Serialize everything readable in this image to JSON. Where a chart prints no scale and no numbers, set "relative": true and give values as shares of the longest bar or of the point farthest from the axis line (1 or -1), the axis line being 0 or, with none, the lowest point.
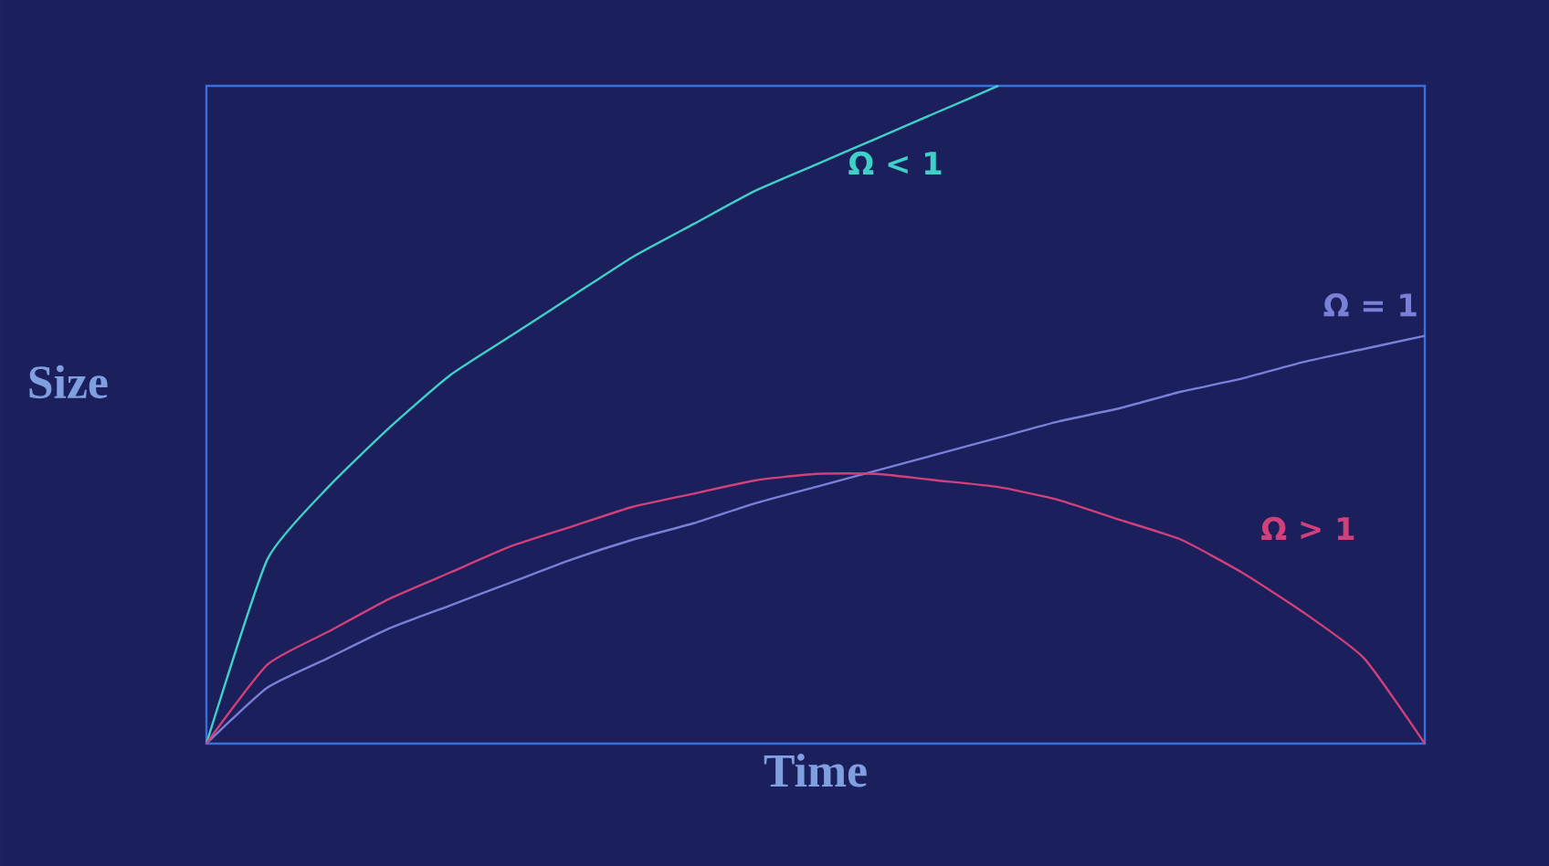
{
  "chart_data": {
    "type": "line",
    "relative": true,
    "xlabel": "Time",
    "ylabel": "Size",
    "categories": [
      null,
      null,
      null,
      null,
      null,
      null,
      null,
      null,
      null,
      null,
      null,
      null,
      null,
      null,
      null,
      null,
      null,
      null,
      null,
      null,
      null
    ],
    "series": [
      {
        "name": "Ω < 1",
        "color": "#3fd0c8",
        "values": [
          0,
          0.28,
          0.39,
          0.48,
          0.56,
          0.62,
          0.68,
          0.74,
          0.79,
          0.84,
          0.88,
          0.92,
          0.96,
          1.0,
          null,
          null,
          null,
          null,
          null,
          null,
          null
        ]
      },
      {
        "name": "Ω = 1",
        "color": "#7a7fd8",
        "values": [
          0,
          0.085,
          0.13,
          0.175,
          0.21,
          0.245,
          0.28,
          0.31,
          0.335,
          0.365,
          0.39,
          0.415,
          0.44,
          0.465,
          0.49,
          0.51,
          0.535,
          0.555,
          0.58,
          0.6,
          0.62
        ]
      },
      {
        "name": "Ω > 1",
        "color": "#d0407a",
        "values": [
          0,
          0.12,
          0.17,
          0.22,
          0.26,
          0.3,
          0.33,
          0.36,
          0.38,
          0.4,
          0.41,
          0.41,
          0.4,
          0.39,
          0.37,
          0.34,
          0.31,
          0.26,
          0.2,
          0.13,
          0
        ]
      }
    ]
  }
}
